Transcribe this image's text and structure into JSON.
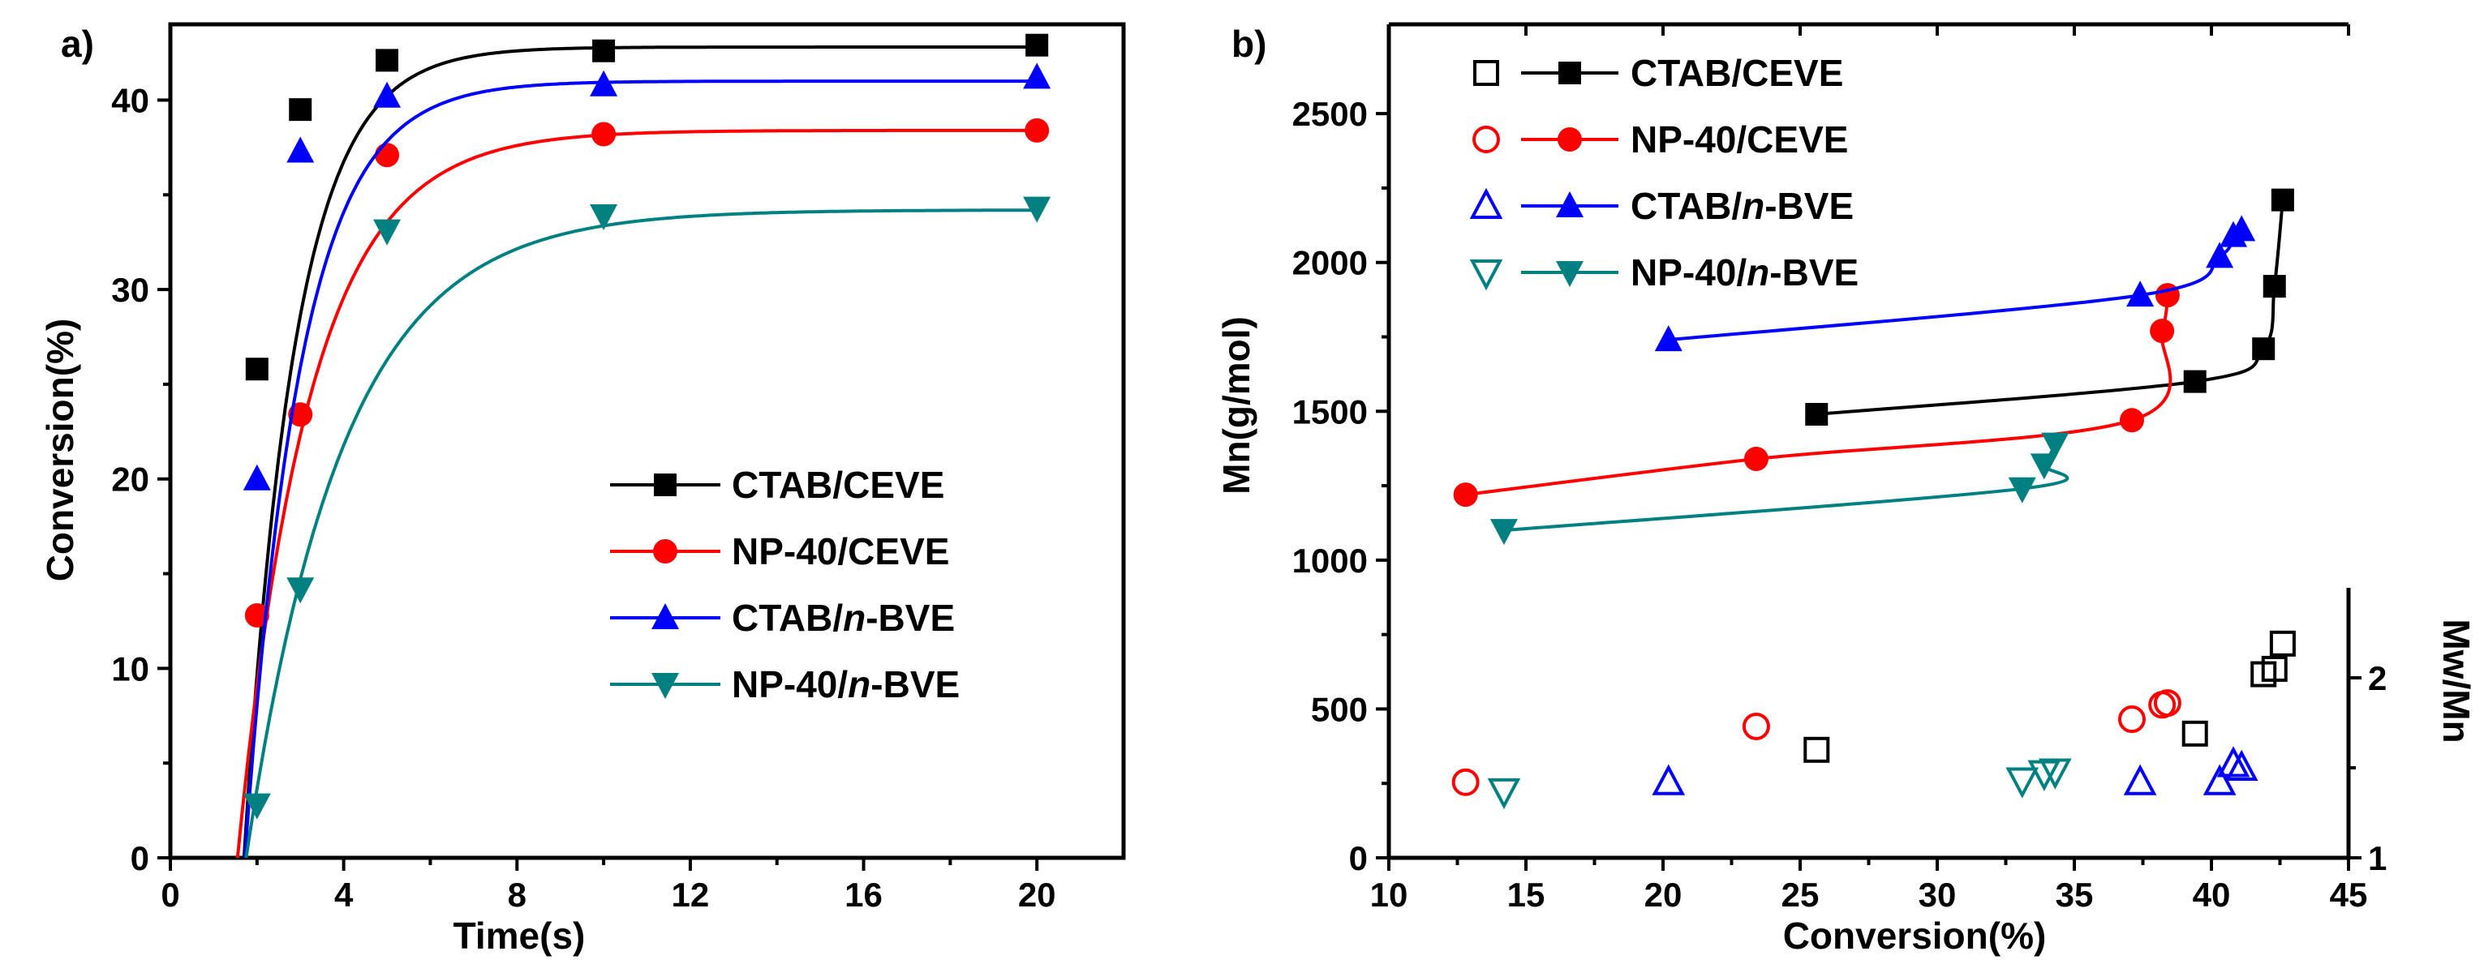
{
  "chart_data": [
    {
      "panel": "a)",
      "type": "line",
      "xlabel": "Time(s)",
      "ylabel": "Conversion(%)",
      "xlim": [
        0,
        22
      ],
      "ylim": [
        0,
        44
      ],
      "xticks": [
        0,
        4,
        8,
        12,
        16,
        20
      ],
      "yticks": [
        0,
        10,
        20,
        30,
        40
      ],
      "legend_position": "lower-right",
      "series": [
        {
          "name": "CTAB/CEVE",
          "color": "#000000",
          "marker": "square",
          "x": [
            2,
            3,
            5,
            10,
            20
          ],
          "y": [
            25.8,
            39.5,
            42.1,
            42.6,
            42.9
          ],
          "fit": {
            "top": 42.8,
            "k": 0.85,
            "x0": 1.7
          }
        },
        {
          "name": "NP-40/CEVE",
          "color": "#ff0000",
          "marker": "circle",
          "x": [
            2,
            3,
            5,
            10,
            20
          ],
          "y": [
            12.8,
            23.4,
            37.1,
            38.2,
            38.4
          ],
          "fit": {
            "top": 38.4,
            "k": 0.6,
            "x0": 1.55
          }
        },
        {
          "name": "CTAB/n-BVE",
          "color": "#0000ff",
          "marker": "triangle-up",
          "x": [
            2,
            3,
            5,
            10,
            20
          ],
          "y": [
            20.0,
            37.3,
            40.2,
            40.8,
            41.2
          ],
          "fit": {
            "top": 41.0,
            "k": 0.78,
            "x0": 1.72
          }
        },
        {
          "name": "NP-40/n-BVE",
          "color": "#008080",
          "marker": "triangle-down",
          "x": [
            2,
            3,
            5,
            10,
            20
          ],
          "y": [
            2.8,
            14.2,
            33.1,
            33.9,
            34.3
          ],
          "fit": {
            "top": 34.2,
            "k": 0.45,
            "x0": 1.75
          }
        }
      ]
    },
    {
      "panel": "b)",
      "type": "scatter",
      "xlabel": "Conversion(%)",
      "ylabel_left": "Mn(g/mol)",
      "ylabel_right": "Mw/Mn",
      "xlim": [
        10,
        45
      ],
      "ylim": [
        0,
        2800
      ],
      "ylim_right": [
        1,
        2.5
      ],
      "xticks": [
        10,
        15,
        20,
        25,
        30,
        35,
        40,
        45
      ],
      "yticks": [
        0,
        500,
        1000,
        1500,
        2000,
        2500
      ],
      "yticks_right": [
        1,
        2
      ],
      "legend_position": "top-left",
      "series": [
        {
          "name": "CTAB/CEVE",
          "color": "#000000",
          "marker": "square",
          "conversion": [
            25.6,
            39.4,
            41.9,
            42.3,
            42.6
          ],
          "Mn": [
            1490,
            1600,
            1710,
            1920,
            2210
          ],
          "PDI": [
            1.6,
            1.69,
            2.02,
            2.05,
            2.19
          ]
        },
        {
          "name": "NP-40/CEVE",
          "color": "#ff0000",
          "marker": "circle",
          "conversion": [
            12.8,
            23.4,
            37.1,
            38.2,
            38.4
          ],
          "Mn": [
            1220,
            1340,
            1470,
            1770,
            1890
          ],
          "PDI": [
            1.42,
            1.73,
            1.77,
            1.85,
            1.86
          ]
        },
        {
          "name": "CTAB/n-BVE",
          "color": "#0000ff",
          "marker": "triangle-up",
          "conversion": [
            20.2,
            37.4,
            40.3,
            40.8,
            41.1
          ],
          "Mn": [
            1740,
            1890,
            2020,
            2090,
            2110
          ],
          "PDI": [
            1.42,
            1.42,
            1.42,
            1.52,
            1.5
          ]
        },
        {
          "name": "NP-40/n-BVE",
          "color": "#008080",
          "marker": "triangle-down",
          "conversion": [
            14.2,
            33.1,
            33.9,
            34.3
          ],
          "Mn": [
            1100,
            1240,
            1320,
            1390
          ],
          "PDI": [
            1.37,
            1.43,
            1.47,
            1.48
          ]
        }
      ]
    }
  ]
}
